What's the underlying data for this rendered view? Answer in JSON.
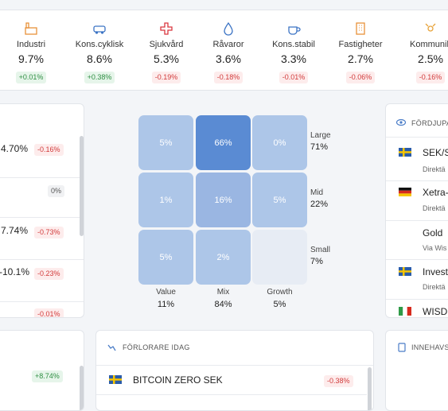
{
  "sectors": [
    {
      "name": "Industri",
      "weight": "9.7%",
      "change": "+0.01%"
    },
    {
      "name": "Kons.cyklisk",
      "weight": "8.6%",
      "change": "+0.38%"
    },
    {
      "name": "Sjukvård",
      "weight": "5.3%",
      "change": "-0.19%"
    },
    {
      "name": "Råvaror",
      "weight": "3.6%",
      "change": "-0.18%"
    },
    {
      "name": "Kons.stabil",
      "weight": "3.3%",
      "change": "-0.01%"
    },
    {
      "name": "Fastigheter",
      "weight": "2.7%",
      "change": "-0.06%"
    },
    {
      "name": "Kommunik",
      "weight": "2.5%",
      "change": "-0.16%"
    }
  ],
  "left_list": {
    "rows": [
      {
        "value": "4.70%",
        "change": "-0.16%"
      },
      {
        "change": "0%"
      },
      {
        "value": "7.74%",
        "change": "-0.73%"
      },
      {
        "value": "-10.1%",
        "change": "-0.23%"
      },
      {
        "change": "-0.01%"
      }
    ]
  },
  "style_box": {
    "cells": [
      [
        {
          "label": "5%",
          "color": "#adc6e8"
        },
        {
          "label": "66%",
          "color": "#5a8bd3"
        },
        {
          "label": "0%",
          "color": "#adc6e8"
        }
      ],
      [
        {
          "label": "1%",
          "color": "#adc6e8"
        },
        {
          "label": "16%",
          "color": "#9ab6e2"
        },
        {
          "label": "5%",
          "color": "#adc6e8"
        }
      ],
      [
        {
          "label": "5%",
          "color": "#adc6e8"
        },
        {
          "label": "2%",
          "color": "#adc6e8"
        },
        {
          "color": "#e7ecf4"
        }
      ]
    ],
    "rows": [
      {
        "label": "Large",
        "value": "71%"
      },
      {
        "label": "Mid",
        "value": "22%"
      },
      {
        "label": "Small",
        "value": "7%"
      }
    ],
    "columns": [
      {
        "label": "Value",
        "value": "11%"
      },
      {
        "label": "Mix",
        "value": "84%"
      },
      {
        "label": "Growth",
        "value": "5%"
      }
    ]
  },
  "deep_dive": {
    "title": "FÖRDJUPAT",
    "items": [
      {
        "name": "SEK/SE",
        "sub": "Direktä"
      },
      {
        "name": "Xetra-",
        "sub": "Direktä"
      },
      {
        "name": "Gold",
        "sub": "Via Wis"
      },
      {
        "name": "Invest",
        "sub": "Direktä"
      },
      {
        "name": "WISDO"
      }
    ]
  },
  "bottom_left": {
    "change": "+8.74%"
  },
  "losers": {
    "title": "FÖRLORARE IDAG",
    "rows": [
      {
        "name": "BITCOIN ZERO SEK",
        "change": "-0.38%"
      }
    ]
  },
  "holdings": {
    "title": "INNEHAVS"
  }
}
